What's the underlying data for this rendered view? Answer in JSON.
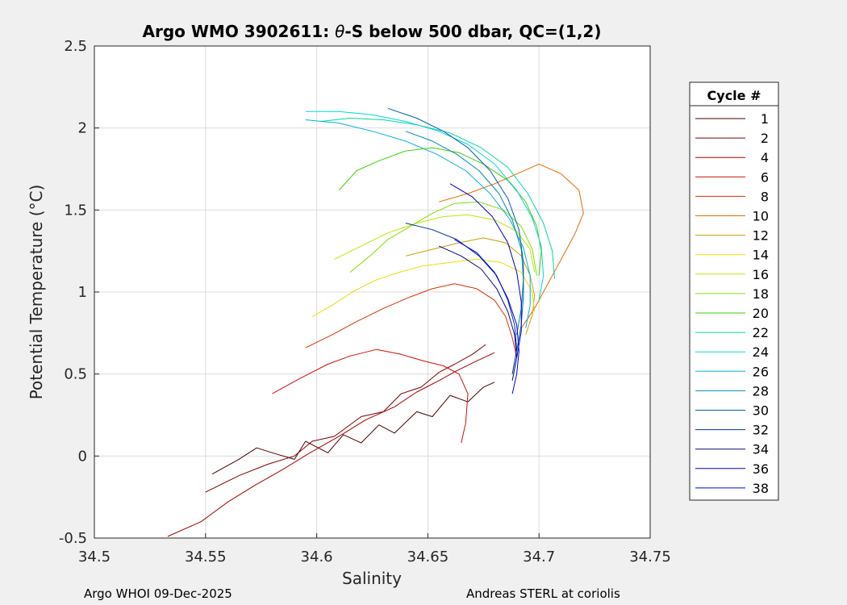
{
  "chart_data": {
    "type": "line",
    "title_prefix": "Argo WMO 3902611: ",
    "title_theta": "θ",
    "title_suffix": "-S below 500 dbar,  QC=(1,2)",
    "xlabel": "Salinity",
    "ylabel": "Potential Temperature (°C)",
    "xlim": [
      34.5,
      34.75
    ],
    "ylim": [
      -0.5,
      2.5
    ],
    "x_ticks": [
      "34.5",
      "34.55",
      "34.6",
      "34.65",
      "34.7",
      "34.75"
    ],
    "y_ticks": [
      "-0.5",
      "0",
      "0.5",
      "1",
      "1.5",
      "2",
      "2.5"
    ],
    "grid": true,
    "legend_title": "Cycle #",
    "legend_position": "outside-right",
    "series": [
      {
        "name": "1",
        "color": "#4a0000",
        "points": [
          [
            34.553,
            -0.11
          ],
          [
            34.565,
            -0.02
          ],
          [
            34.573,
            0.05
          ],
          [
            34.58,
            0.02
          ],
          [
            34.59,
            -0.02
          ],
          [
            34.595,
            0.09
          ],
          [
            34.605,
            0.02
          ],
          [
            34.612,
            0.13
          ],
          [
            34.62,
            0.08
          ],
          [
            34.628,
            0.19
          ],
          [
            34.635,
            0.14
          ],
          [
            34.645,
            0.27
          ],
          [
            34.652,
            0.24
          ],
          [
            34.66,
            0.37
          ],
          [
            34.668,
            0.33
          ],
          [
            34.675,
            0.42
          ],
          [
            34.68,
            0.45
          ]
        ]
      },
      {
        "name": "2",
        "color": "#7a0000",
        "points": [
          [
            34.55,
            -0.22
          ],
          [
            34.565,
            -0.12
          ],
          [
            34.578,
            -0.05
          ],
          [
            34.59,
            0.0
          ],
          [
            34.598,
            0.09
          ],
          [
            34.608,
            0.12
          ],
          [
            34.62,
            0.24
          ],
          [
            34.63,
            0.27
          ],
          [
            34.638,
            0.38
          ],
          [
            34.647,
            0.42
          ],
          [
            34.655,
            0.51
          ],
          [
            34.662,
            0.56
          ],
          [
            34.67,
            0.62
          ],
          [
            34.676,
            0.68
          ]
        ]
      },
      {
        "name": "4",
        "color": "#a80000",
        "points": [
          [
            34.533,
            -0.49
          ],
          [
            34.548,
            -0.4
          ],
          [
            34.56,
            -0.28
          ],
          [
            34.572,
            -0.18
          ],
          [
            34.585,
            -0.08
          ],
          [
            34.597,
            0.02
          ],
          [
            34.61,
            0.12
          ],
          [
            34.622,
            0.22
          ],
          [
            34.635,
            0.3
          ],
          [
            34.645,
            0.39
          ],
          [
            34.655,
            0.46
          ],
          [
            34.663,
            0.52
          ],
          [
            34.672,
            0.58
          ],
          [
            34.68,
            0.63
          ]
        ]
      },
      {
        "name": "6",
        "color": "#d01000",
        "points": [
          [
            34.58,
            0.38
          ],
          [
            34.592,
            0.47
          ],
          [
            34.605,
            0.56
          ],
          [
            34.615,
            0.61
          ],
          [
            34.627,
            0.65
          ],
          [
            34.638,
            0.62
          ],
          [
            34.648,
            0.58
          ],
          [
            34.657,
            0.55
          ],
          [
            34.664,
            0.5
          ],
          [
            34.668,
            0.38
          ],
          [
            34.667,
            0.2
          ],
          [
            34.665,
            0.08
          ]
        ]
      },
      {
        "name": "8",
        "color": "#e03000",
        "points": [
          [
            34.595,
            0.66
          ],
          [
            34.607,
            0.74
          ],
          [
            34.618,
            0.82
          ],
          [
            34.63,
            0.9
          ],
          [
            34.642,
            0.97
          ],
          [
            34.652,
            1.02
          ],
          [
            34.662,
            1.05
          ],
          [
            34.672,
            1.02
          ],
          [
            34.68,
            0.95
          ],
          [
            34.685,
            0.85
          ],
          [
            34.688,
            0.72
          ],
          [
            34.69,
            0.6
          ]
        ]
      },
      {
        "name": "10",
        "color": "#e86a00",
        "points": [
          [
            34.655,
            1.55
          ],
          [
            34.668,
            1.6
          ],
          [
            34.68,
            1.66
          ],
          [
            34.69,
            1.72
          ],
          [
            34.7,
            1.78
          ],
          [
            34.71,
            1.72
          ],
          [
            34.718,
            1.62
          ],
          [
            34.72,
            1.48
          ],
          [
            34.716,
            1.35
          ],
          [
            34.71,
            1.2
          ],
          [
            34.704,
            1.05
          ],
          [
            34.698,
            0.9
          ],
          [
            34.692,
            0.78
          ]
        ]
      },
      {
        "name": "12",
        "color": "#c8a000",
        "points": [
          [
            34.64,
            1.22
          ],
          [
            34.652,
            1.26
          ],
          [
            34.664,
            1.3
          ],
          [
            34.675,
            1.33
          ],
          [
            34.685,
            1.3
          ],
          [
            34.692,
            1.22
          ],
          [
            34.696,
            1.1
          ],
          [
            34.698,
            0.98
          ],
          [
            34.697,
            0.86
          ],
          [
            34.694,
            0.74
          ]
        ]
      },
      {
        "name": "14",
        "color": "#e8e000",
        "points": [
          [
            34.598,
            0.85
          ],
          [
            34.607,
            0.92
          ],
          [
            34.616,
            1.0
          ],
          [
            34.626,
            1.07
          ],
          [
            34.637,
            1.12
          ],
          [
            34.648,
            1.16
          ],
          [
            34.66,
            1.18
          ],
          [
            34.672,
            1.2
          ],
          [
            34.683,
            1.18
          ],
          [
            34.692,
            1.12
          ],
          [
            34.697,
            1.0
          ],
          [
            34.698,
            0.88
          ]
        ]
      },
      {
        "name": "16",
        "color": "#b8ea00",
        "points": [
          [
            34.608,
            1.2
          ],
          [
            34.62,
            1.28
          ],
          [
            34.632,
            1.36
          ],
          [
            34.645,
            1.42
          ],
          [
            34.657,
            1.46
          ],
          [
            34.668,
            1.47
          ],
          [
            34.68,
            1.44
          ],
          [
            34.69,
            1.37
          ],
          [
            34.696,
            1.26
          ],
          [
            34.698,
            1.12
          ]
        ]
      },
      {
        "name": "18",
        "color": "#80e000",
        "points": [
          [
            34.615,
            1.12
          ],
          [
            34.624,
            1.22
          ],
          [
            34.632,
            1.32
          ],
          [
            34.642,
            1.4
          ],
          [
            34.652,
            1.48
          ],
          [
            34.662,
            1.54
          ],
          [
            34.673,
            1.55
          ],
          [
            34.684,
            1.5
          ],
          [
            34.692,
            1.4
          ],
          [
            34.697,
            1.26
          ],
          [
            34.699,
            1.1
          ]
        ]
      },
      {
        "name": "20",
        "color": "#40d000",
        "points": [
          [
            34.61,
            1.62
          ],
          [
            34.618,
            1.74
          ],
          [
            34.628,
            1.8
          ],
          [
            34.64,
            1.86
          ],
          [
            34.652,
            1.88
          ],
          [
            34.664,
            1.85
          ],
          [
            34.675,
            1.78
          ],
          [
            34.686,
            1.68
          ],
          [
            34.694,
            1.55
          ],
          [
            34.699,
            1.4
          ],
          [
            34.701,
            1.25
          ],
          [
            34.7,
            1.1
          ]
        ]
      },
      {
        "name": "22",
        "color": "#00d8a0",
        "points": [
          [
            34.602,
            2.04
          ],
          [
            34.615,
            2.06
          ],
          [
            34.63,
            2.05
          ],
          [
            34.645,
            2.02
          ],
          [
            34.66,
            1.97
          ],
          [
            34.674,
            1.88
          ],
          [
            34.686,
            1.76
          ],
          [
            34.695,
            1.6
          ],
          [
            34.702,
            1.42
          ],
          [
            34.706,
            1.25
          ],
          [
            34.707,
            1.08
          ]
        ]
      },
      {
        "name": "24",
        "color": "#00d8d8",
        "points": [
          [
            34.595,
            2.1
          ],
          [
            34.61,
            2.1
          ],
          [
            34.625,
            2.08
          ],
          [
            34.64,
            2.04
          ],
          [
            34.655,
            1.98
          ],
          [
            34.668,
            1.9
          ],
          [
            34.68,
            1.78
          ],
          [
            34.69,
            1.62
          ],
          [
            34.697,
            1.45
          ],
          [
            34.701,
            1.28
          ],
          [
            34.702,
            1.1
          ],
          [
            34.7,
            0.95
          ]
        ]
      },
      {
        "name": "26",
        "color": "#00b0e0",
        "points": [
          [
            34.595,
            2.05
          ],
          [
            34.61,
            2.03
          ],
          [
            34.625,
            1.98
          ],
          [
            34.64,
            1.92
          ],
          [
            34.654,
            1.84
          ],
          [
            34.667,
            1.74
          ],
          [
            34.678,
            1.6
          ],
          [
            34.687,
            1.44
          ],
          [
            34.693,
            1.27
          ],
          [
            34.696,
            1.1
          ],
          [
            34.696,
            0.92
          ],
          [
            34.694,
            0.78
          ]
        ]
      },
      {
        "name": "28",
        "color": "#008ab0",
        "points": [
          [
            34.64,
            1.98
          ],
          [
            34.652,
            1.92
          ],
          [
            34.663,
            1.84
          ],
          [
            34.673,
            1.74
          ],
          [
            34.682,
            1.6
          ],
          [
            34.688,
            1.44
          ],
          [
            34.692,
            1.26
          ],
          [
            34.693,
            1.08
          ],
          [
            34.692,
            0.9
          ],
          [
            34.69,
            0.74
          ]
        ]
      },
      {
        "name": "30",
        "color": "#0060b0",
        "points": [
          [
            34.632,
            2.12
          ],
          [
            34.645,
            2.06
          ],
          [
            34.657,
            1.98
          ],
          [
            34.668,
            1.88
          ],
          [
            34.678,
            1.74
          ],
          [
            34.686,
            1.57
          ],
          [
            34.691,
            1.38
          ],
          [
            34.693,
            1.18
          ],
          [
            34.693,
            0.98
          ],
          [
            34.692,
            0.8
          ],
          [
            34.69,
            0.64
          ]
        ]
      },
      {
        "name": "32",
        "color": "#0030a0",
        "points": [
          [
            34.64,
            1.42
          ],
          [
            34.652,
            1.38
          ],
          [
            34.663,
            1.32
          ],
          [
            34.673,
            1.22
          ],
          [
            34.681,
            1.1
          ],
          [
            34.686,
            0.95
          ],
          [
            34.689,
            0.8
          ],
          [
            34.69,
            0.65
          ],
          [
            34.688,
            0.5
          ]
        ]
      },
      {
        "name": "34",
        "color": "#000a80",
        "points": [
          [
            34.655,
            1.28
          ],
          [
            34.665,
            1.22
          ],
          [
            34.674,
            1.14
          ],
          [
            34.681,
            1.02
          ],
          [
            34.686,
            0.88
          ],
          [
            34.689,
            0.74
          ],
          [
            34.69,
            0.6
          ],
          [
            34.688,
            0.46
          ]
        ]
      },
      {
        "name": "36",
        "color": "#0000c0",
        "points": [
          [
            34.66,
            1.66
          ],
          [
            34.67,
            1.58
          ],
          [
            34.679,
            1.46
          ],
          [
            34.686,
            1.3
          ],
          [
            34.69,
            1.12
          ],
          [
            34.692,
            0.94
          ],
          [
            34.692,
            0.76
          ],
          [
            34.69,
            0.6
          ]
        ]
      },
      {
        "name": "38",
        "color": "#0000f0",
        "points": [
          [
            34.662,
            1.32
          ],
          [
            34.672,
            1.24
          ],
          [
            34.68,
            1.12
          ],
          [
            34.686,
            0.96
          ],
          [
            34.69,
            0.8
          ],
          [
            34.691,
            0.64
          ],
          [
            34.69,
            0.5
          ],
          [
            34.688,
            0.38
          ]
        ]
      }
    ]
  },
  "footer": {
    "left": "Argo WHOI 09-Dec-2025",
    "right": "Andreas STERL at coriolis"
  }
}
